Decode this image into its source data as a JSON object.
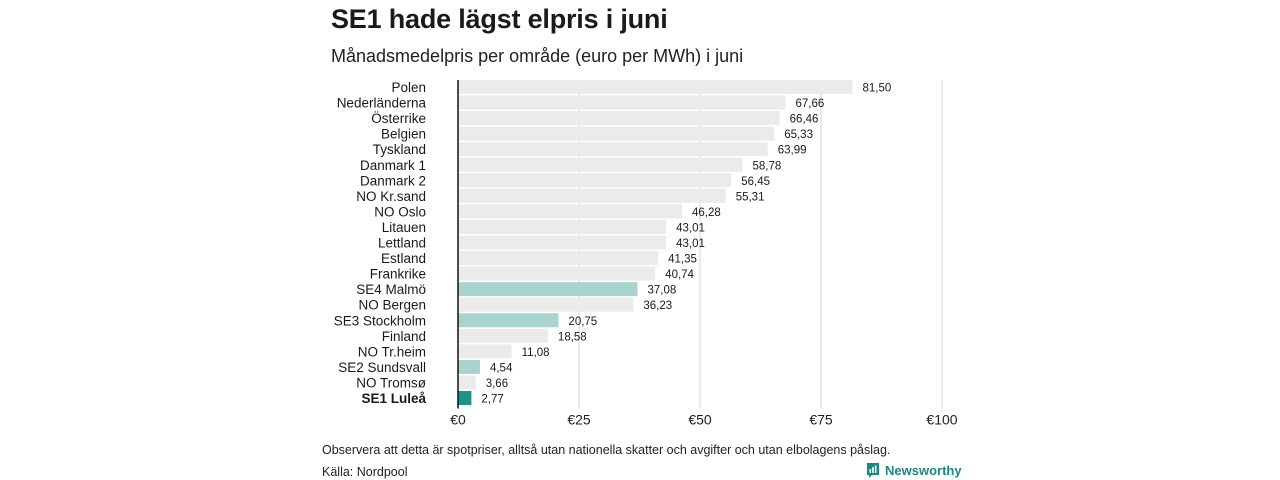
{
  "title": "SE1 hade lägst elpris i juni",
  "subtitle": "Månadsmedelpris per område (euro per MWh) i juni",
  "note": "Observera att detta är spotpriser, alltså utan nationella skatter och avgifter och utan elbolagens påslag.",
  "source": "Källa: Nordpool",
  "brand": {
    "name": "Newsworthy",
    "logo_icon": "newsworthy-logo-icon"
  },
  "colors": {
    "bar_default": "#ebebeb",
    "bar_se": "#a9d4cc",
    "bar_se1": "#1d9488",
    "gridline": "#d4d4d4",
    "baseline": "#111111",
    "brand": "#1a8a7f"
  },
  "chart_data": {
    "type": "bar",
    "orientation": "horizontal",
    "categories": [
      "Polen",
      "Nederländerna",
      "Österrike",
      "Belgien",
      "Tyskland",
      "Danmark  1",
      "Danmark  2",
      "NO Kr.sand",
      "NO Oslo",
      "Litauen",
      "Lettland",
      "Estland",
      "Frankrike",
      "SE4  Malmö",
      "NO Bergen",
      "SE3  Stockholm",
      "Finland",
      "NO Tr.heim",
      "SE2  Sundsvall",
      "NO Tromsø",
      "SE1 Luleå"
    ],
    "values": [
      81.5,
      67.66,
      66.46,
      65.33,
      63.99,
      58.78,
      56.45,
      55.31,
      46.28,
      43.01,
      43.01,
      41.35,
      40.74,
      37.08,
      36.23,
      20.75,
      18.58,
      11.08,
      4.54,
      3.66,
      2.77
    ],
    "value_labels": [
      "81,50",
      "67,66",
      "66,46",
      "65,33",
      "63,99",
      "58,78",
      "56,45",
      "55,31",
      "46,28",
      "43,01",
      "43,01",
      "41,35",
      "40,74",
      "37,08",
      "36,23",
      "20,75",
      "18,58",
      "11,08",
      "4,54",
      "3,66",
      "2,77"
    ],
    "highlight": [
      "none",
      "none",
      "none",
      "none",
      "none",
      "none",
      "none",
      "none",
      "none",
      "none",
      "none",
      "none",
      "none",
      "se",
      "none",
      "se",
      "none",
      "none",
      "se",
      "none",
      "se1"
    ],
    "xlim": [
      0,
      100
    ],
    "xticks": [
      0,
      25,
      50,
      75,
      100
    ],
    "xtick_labels": [
      "€0",
      "€25",
      "€50",
      "€75",
      "€100"
    ],
    "grid": true
  }
}
